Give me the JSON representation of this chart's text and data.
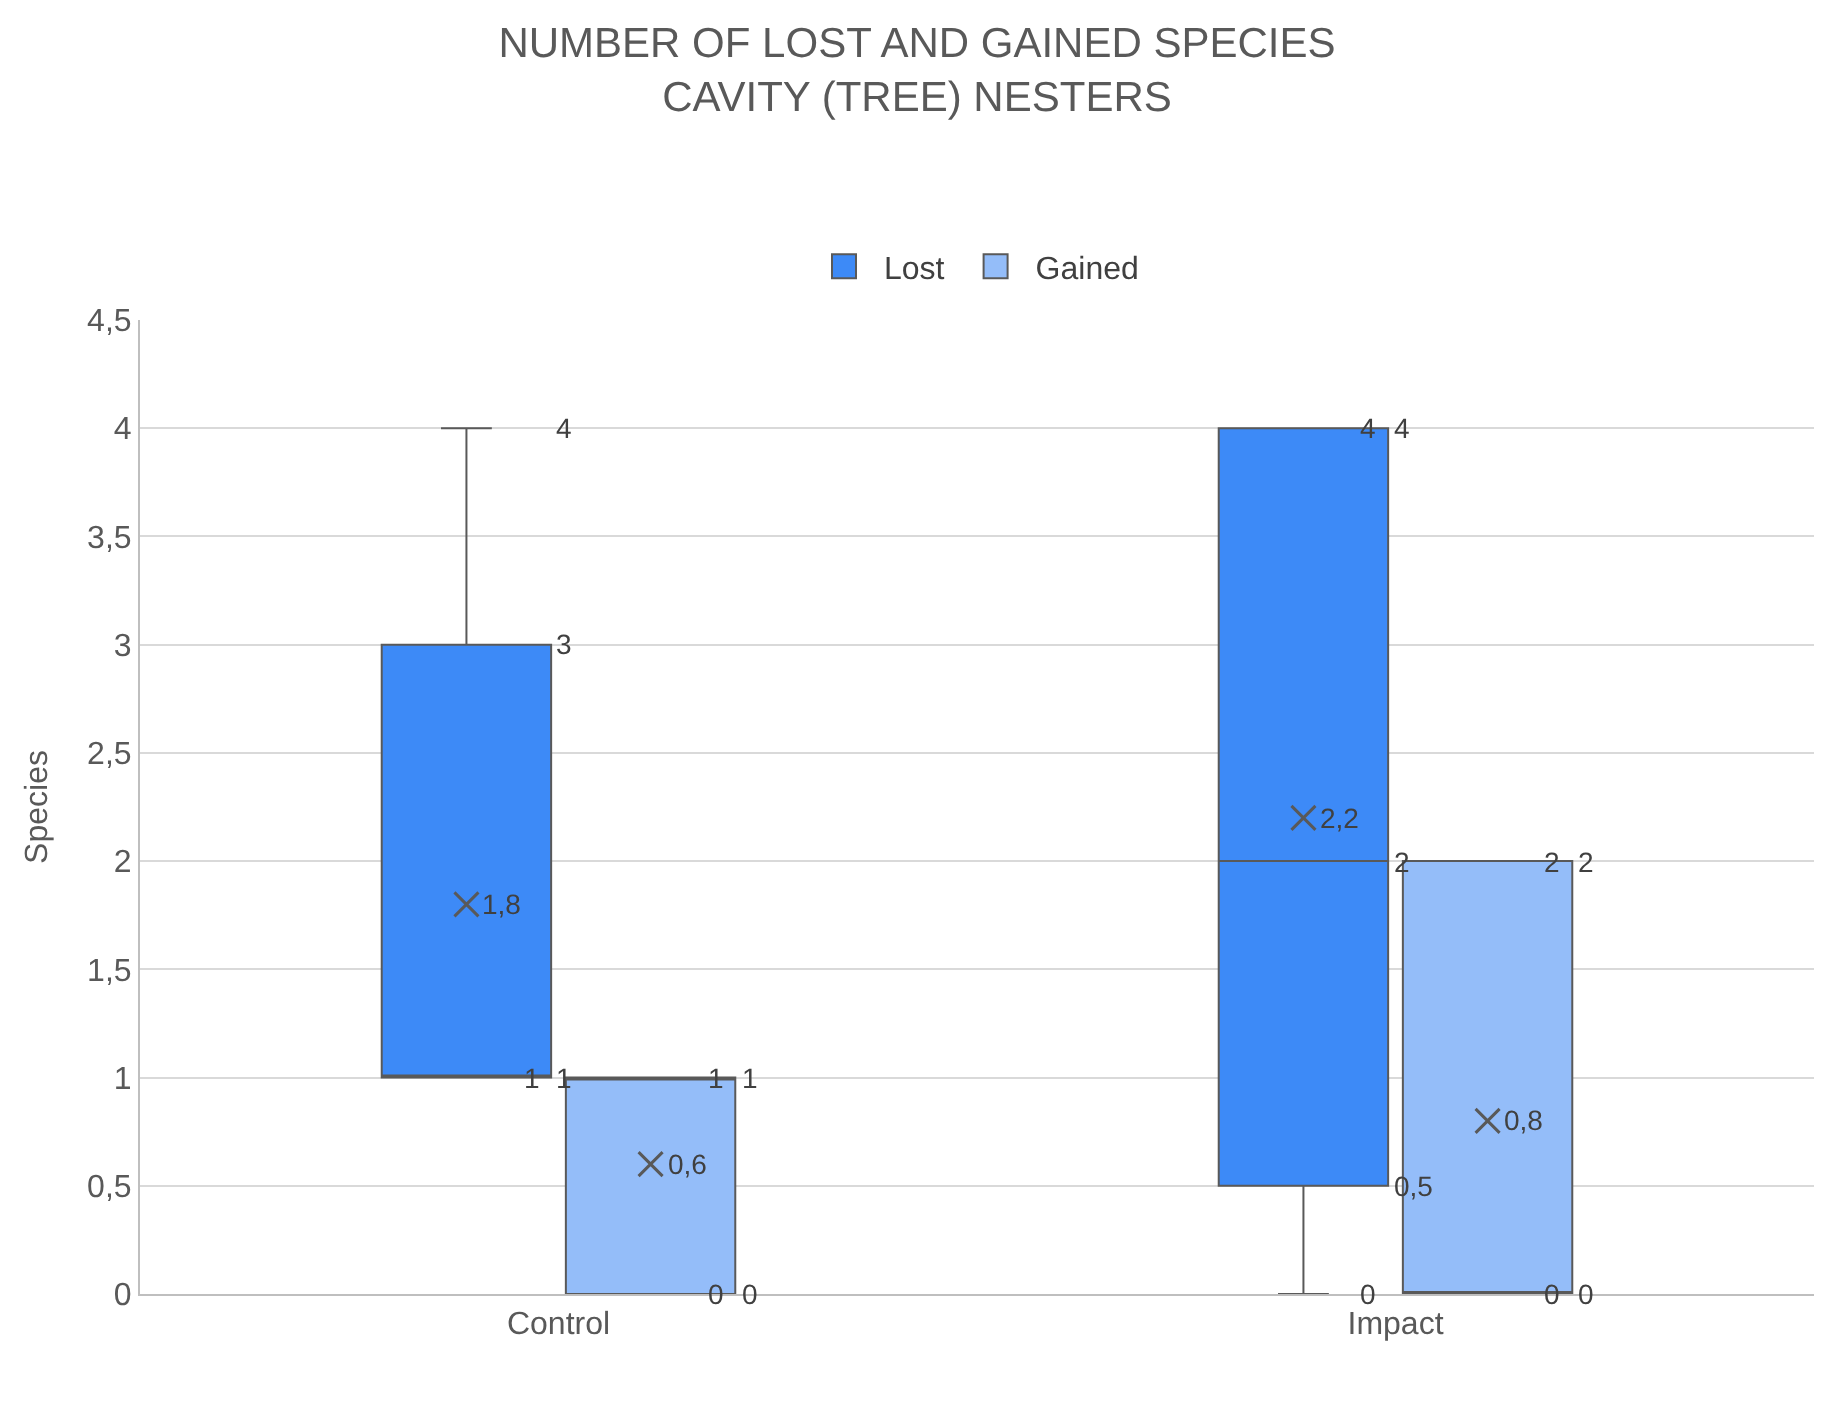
{
  "chart_data": {
    "type": "box",
    "title": "NUMBER OF LOST AND GAINED SPECIES\nCAVITY (TREE) NESTERS",
    "ylabel": "Species",
    "categories": [
      "Control",
      "Impact"
    ],
    "series": [
      {
        "name": "Lost",
        "color": "#3d8af7",
        "boxes": [
          {
            "low": 1,
            "q1": 1,
            "median": 1,
            "q3": 3,
            "high": 4,
            "mean": 1.8
          },
          {
            "low": 0,
            "q1": 0.5,
            "median": 2,
            "q3": 4,
            "high": 4,
            "mean": 2.2
          }
        ],
        "value_labels": [
          [
            "1",
            "1",
            null,
            "3",
            "4",
            "1,8"
          ],
          [
            "0",
            "0,5",
            "2",
            "4",
            "4",
            "2,2"
          ]
        ]
      },
      {
        "name": "Gained",
        "color": "#94bdf9",
        "boxes": [
          {
            "low": 0,
            "q1": 0,
            "median": 1,
            "q3": 1,
            "high": 1,
            "mean": 0.6
          },
          {
            "low": 0,
            "q1": 0,
            "median": 0,
            "q3": 2,
            "high": 2,
            "mean": 0.8
          }
        ],
        "value_labels": [
          [
            "0",
            "0",
            null,
            "1",
            "1",
            "0,6"
          ],
          [
            "0",
            "0",
            null,
            "2",
            "2",
            "0,8"
          ]
        ]
      }
    ],
    "ylim": [
      0,
      4.5
    ],
    "yticks": [
      0,
      {
        "value": 0.5,
        "label": "0,5"
      },
      1,
      {
        "value": 1.5,
        "label": "1,5"
      },
      2,
      {
        "value": 2.5,
        "label": "2,5"
      },
      3,
      {
        "value": 3.5,
        "label": "3,5"
      },
      4,
      {
        "value": 4.5,
        "label": "4,5"
      }
    ],
    "grid": "y",
    "legend": "top",
    "data_labels": true
  }
}
